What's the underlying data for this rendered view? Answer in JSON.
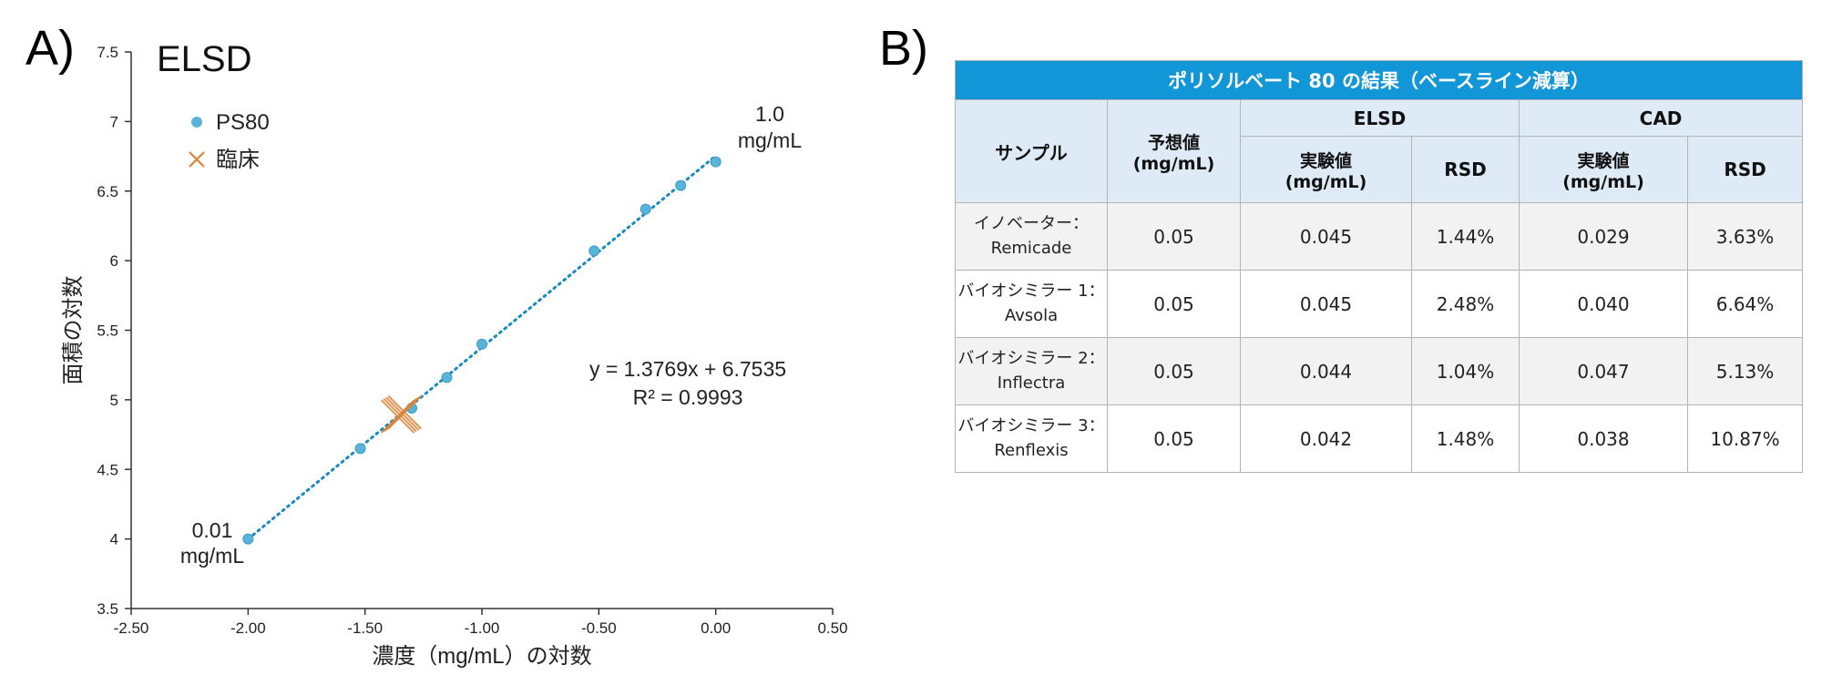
{
  "panel_a": {
    "label": "A)"
  },
  "panel_b": {
    "label": "B)"
  },
  "chart_data": {
    "type": "scatter",
    "title": "ELSD",
    "xlabel": "濃度（mg/mL）の対数",
    "ylabel": "面積の対数",
    "xlim": [
      -2.5,
      0.5
    ],
    "ylim": [
      3.5,
      7.5
    ],
    "x_ticks": [
      -2.5,
      -2.0,
      -1.5,
      -1.0,
      -0.5,
      0.0,
      0.5
    ],
    "x_tick_labels": [
      "-2.50",
      "-2.00",
      "-1.50",
      "-1.00",
      "-0.50",
      "0.00",
      "0.50"
    ],
    "y_ticks": [
      3.5,
      4,
      4.5,
      5,
      5.5,
      6,
      6.5,
      7,
      7.5
    ],
    "y_tick_labels": [
      "3.5",
      "4",
      "4.5",
      "5",
      "5.5",
      "6",
      "6.5",
      "7",
      "7.5"
    ],
    "grid": false,
    "legend_position": "top-left",
    "series": [
      {
        "name": "PS80",
        "marker": "circle",
        "color": "#5ab4d9",
        "x": [
          -2.0,
          -1.52,
          -1.3,
          -1.15,
          -1.0,
          -0.52,
          -0.3,
          -0.15,
          0.0
        ],
        "y": [
          4.0,
          4.65,
          4.94,
          5.16,
          5.4,
          6.07,
          6.37,
          6.54,
          6.71
        ]
      },
      {
        "name": "臨床",
        "marker": "x",
        "color": "#d9843a",
        "x": [
          -1.36,
          -1.35,
          -1.34,
          -1.33
        ],
        "y": [
          4.88,
          4.89,
          4.9,
          4.91
        ]
      }
    ],
    "trendline": {
      "slope": 1.3769,
      "intercept": 6.7535,
      "x_range": [
        -2.0,
        0.0
      ],
      "style": "dotted",
      "color": "#1a8ac2",
      "equation": "y = 1.3769x + 6.7535",
      "r_squared": "R² = 0.9993"
    },
    "annotations": [
      {
        "id": "high",
        "lines": [
          "1.0",
          "mg/mL"
        ]
      },
      {
        "id": "low",
        "lines": [
          "0.01",
          "mg/mL"
        ]
      }
    ]
  },
  "table": {
    "title": "ポリソルベート 80 の結果（ベースライン減算）",
    "group_headers": {
      "elsd": "ELSD",
      "cad": "CAD"
    },
    "col_sample": "サンプル",
    "col_expected": [
      "予想値",
      "(mg/mL)"
    ],
    "col_measured": [
      "実験値",
      "(mg/mL)"
    ],
    "col_rsd": "RSD",
    "rows": [
      {
        "sample": [
          "イノベーター：",
          "Remicade"
        ],
        "expected": "0.05",
        "elsd_value": "0.045",
        "elsd_rsd": "1.44%",
        "cad_value": "0.029",
        "cad_rsd": "3.63%"
      },
      {
        "sample": [
          "バイオシミラー 1：",
          "Avsola"
        ],
        "expected": "0.05",
        "elsd_value": "0.045",
        "elsd_rsd": "2.48%",
        "cad_value": "0.040",
        "cad_rsd": "6.64%"
      },
      {
        "sample": [
          "バイオシミラー 2：",
          "Inflectra"
        ],
        "expected": "0.05",
        "elsd_value": "0.044",
        "elsd_rsd": "1.04%",
        "cad_value": "0.047",
        "cad_rsd": "5.13%"
      },
      {
        "sample": [
          "バイオシミラー 3：",
          "Renflexis"
        ],
        "expected": "0.05",
        "elsd_value": "0.042",
        "elsd_rsd": "1.48%",
        "cad_value": "0.038",
        "cad_rsd": "10.87%"
      }
    ]
  }
}
